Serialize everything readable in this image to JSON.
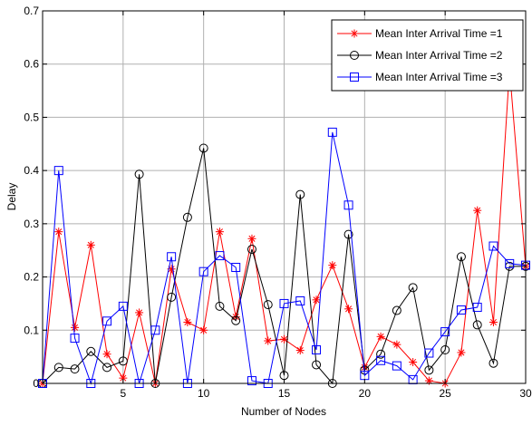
{
  "chart_data": {
    "type": "line",
    "title": "",
    "xlabel": "Number of Nodes",
    "ylabel": "Delay",
    "xlim": [
      0,
      30
    ],
    "ylim": [
      0,
      0.7
    ],
    "xticks": [
      5,
      10,
      15,
      20,
      25,
      30
    ],
    "yticks": [
      0,
      0.1,
      0.2,
      0.3,
      0.4,
      0.5,
      0.6,
      0.7
    ],
    "xtick_labels": [
      "5",
      "10",
      "15",
      "20",
      "25",
      "30"
    ],
    "ytick_labels": [
      "0",
      "0.1",
      "0.2",
      "0.3",
      "0.4",
      "0.5",
      "0.6",
      "0.7"
    ],
    "grid": true,
    "legend_position": "top-right",
    "x": [
      0,
      1,
      2,
      3,
      4,
      5,
      6,
      7,
      8,
      9,
      10,
      11,
      12,
      13,
      14,
      15,
      16,
      17,
      18,
      19,
      20,
      21,
      22,
      23,
      24,
      25,
      26,
      27,
      28,
      29,
      30
    ],
    "series": [
      {
        "name": "Mean Inter Arrival Time =1",
        "color": "#ff0000",
        "marker": "asterisk",
        "values": [
          0,
          0.285,
          0.105,
          0.26,
          0.055,
          0.01,
          0.133,
          0,
          0.215,
          0.115,
          0.1,
          0.285,
          0.125,
          0.272,
          0.08,
          0.083,
          0.062,
          0.157,
          0.222,
          0.14,
          0.03,
          0.088,
          0.073,
          0.04,
          0.005,
          0,
          0.058,
          0.325,
          0.115,
          0.59,
          0.22
        ]
      },
      {
        "name": "Mean Inter Arrival Time =2",
        "color": "#000000",
        "marker": "circle",
        "values": [
          0,
          0.03,
          0.027,
          0.06,
          0.03,
          0.042,
          0.393,
          0,
          0.162,
          0.312,
          0.442,
          0.145,
          0.118,
          0.252,
          0.148,
          0.015,
          0.355,
          0.035,
          0,
          0.28,
          0.025,
          0.055,
          0.137,
          0.18,
          0.025,
          0.063,
          0.238,
          0.11,
          0.038,
          0.22,
          0.22
        ]
      },
      {
        "name": "Mean Inter Arrival Time =3",
        "color": "#0000ff",
        "marker": "square",
        "values": [
          0,
          0.4,
          0.085,
          0,
          0.117,
          0.145,
          0,
          0.1,
          0.238,
          0,
          0.21,
          0.24,
          0.218,
          0.005,
          0,
          0.15,
          0.155,
          0.063,
          0.472,
          0.335,
          0.015,
          0.043,
          0.033,
          0.007,
          0.057,
          0.097,
          0.138,
          0.143,
          0.258,
          0.225,
          0.222
        ]
      }
    ]
  }
}
